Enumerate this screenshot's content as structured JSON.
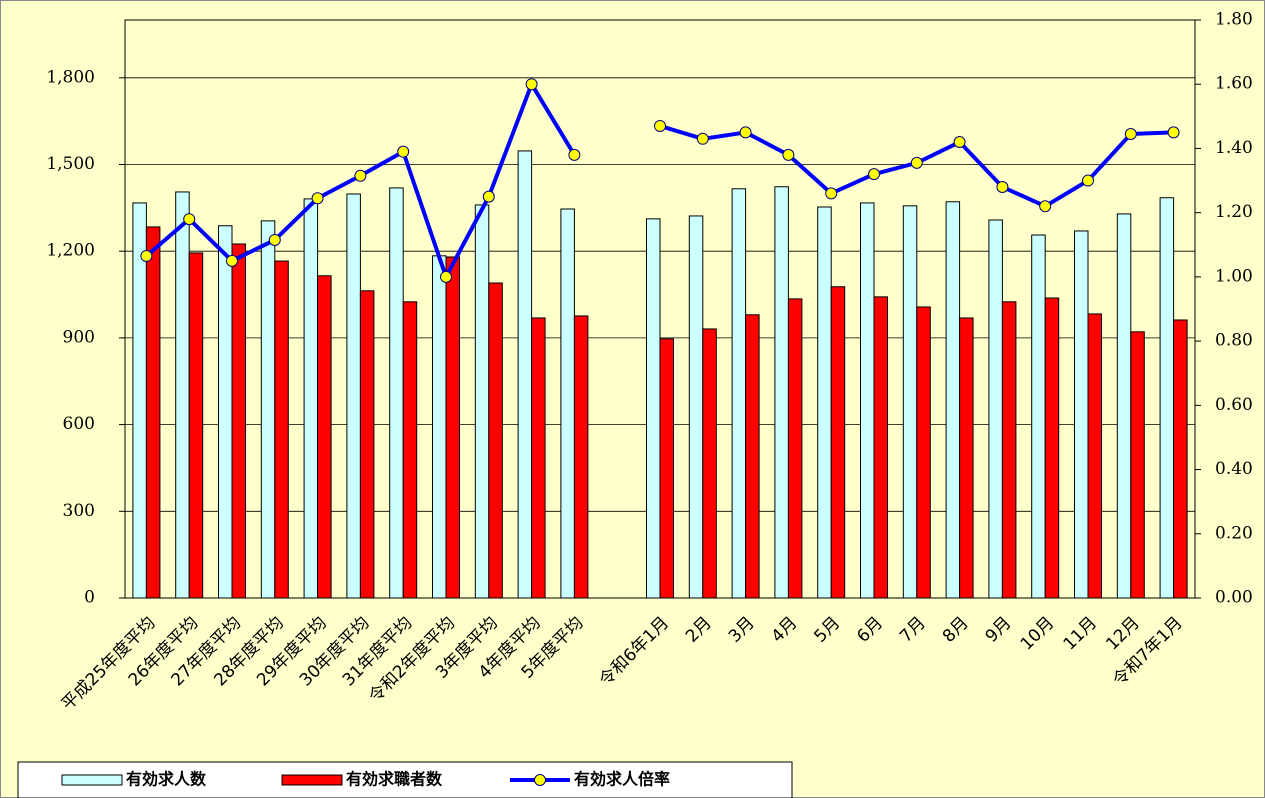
{
  "chart_data": {
    "type": "bar-line",
    "categories": [
      "平成25年度平均",
      "26年度平均",
      "27年度平均",
      "28年度平均",
      "29年度平均",
      "30年度平均",
      "31年度平均",
      "令和2年度平均",
      "3年度平均",
      "4年度平均",
      "5年度平均",
      null,
      "令和6年1月",
      "2月",
      "3月",
      "4月",
      "5月",
      "6月",
      "7月",
      "8月",
      "9月",
      "10月",
      "11月",
      "12月",
      "令和7年1月"
    ],
    "series": [
      {
        "name": "有効求人数",
        "type": "bar",
        "color": "#ccffff",
        "values": [
          1367,
          1405,
          1288,
          1305,
          1381,
          1398,
          1419,
          1184,
          1360,
          1547,
          1346,
          null,
          1312,
          1322,
          1416,
          1423,
          1353,
          1367,
          1357,
          1371,
          1308,
          1256,
          1270,
          1329,
          1385
        ]
      },
      {
        "name": "有効求職者数",
        "type": "bar",
        "color": "#ff0000",
        "values": [
          1284,
          1194,
          1225,
          1166,
          1115,
          1063,
          1025,
          1180,
          1090,
          969,
          976,
          null,
          897,
          931,
          980,
          1035,
          1077,
          1042,
          1007,
          969,
          1025,
          1038,
          983,
          921,
          962
        ]
      },
      {
        "name": "有効求人倍率",
        "type": "line",
        "axis": "y2",
        "color": "#0000ff",
        "marker_color": "#ffff00",
        "values": [
          1.065,
          1.18,
          1.05,
          1.115,
          1.245,
          1.315,
          1.39,
          1.0,
          1.25,
          1.6,
          1.38,
          null,
          1.47,
          1.43,
          1.45,
          1.38,
          1.26,
          1.32,
          1.355,
          1.42,
          1.28,
          1.22,
          1.3,
          1.445,
          1.45
        ]
      }
    ],
    "ylim": [
      0,
      2000
    ],
    "yticks": [
      0,
      300,
      600,
      900,
      {
        "value": 1200,
        "label": "1,200"
      },
      {
        "value": 1500,
        "label": "1,500"
      },
      {
        "value": 1800,
        "label": "1,800"
      }
    ],
    "y2lim": [
      0,
      1.8
    ],
    "y2ticks": [
      {
        "value": 0,
        "label": "0.00"
      },
      {
        "value": 0.2,
        "label": "0.20"
      },
      {
        "value": 0.4,
        "label": "0.40"
      },
      {
        "value": 0.6,
        "label": "0.60"
      },
      {
        "value": 0.8,
        "label": "0.80"
      },
      {
        "value": 1.0,
        "label": "1.00"
      },
      {
        "value": 1.2,
        "label": "1.20"
      },
      {
        "value": 1.4,
        "label": "1.40"
      },
      {
        "value": 1.6,
        "label": "1.60"
      },
      {
        "value": 1.8,
        "label": "1.80"
      }
    ],
    "grid": true,
    "legend": "bottom-left"
  }
}
